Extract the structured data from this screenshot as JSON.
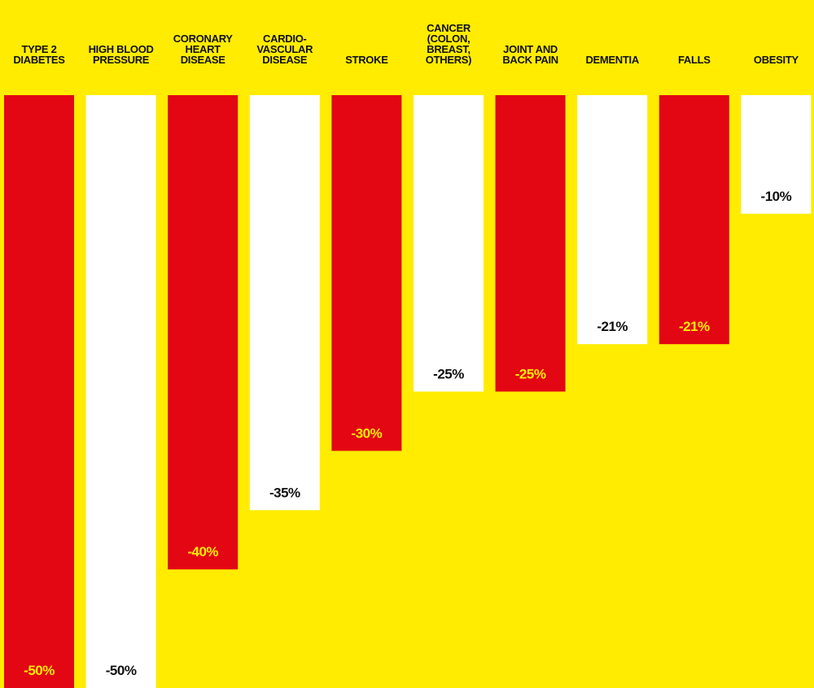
{
  "chart_data": {
    "type": "bar",
    "orientation": "downward",
    "categories": [
      [
        "TYPE 2",
        "DIABETES"
      ],
      [
        "HIGH BLOOD",
        "PRESSURE"
      ],
      [
        "CORONARY",
        "HEART",
        "DISEASE"
      ],
      [
        "CARDIO-",
        "VASCULAR",
        "DISEASE"
      ],
      [
        "STROKE"
      ],
      [
        "CANCER",
        "(COLON,",
        "BREAST,",
        "OTHERS)"
      ],
      [
        "JOINT AND",
        "BACK PAIN"
      ],
      [
        "DEMENTIA"
      ],
      [
        "FALLS"
      ],
      [
        "OBESITY"
      ]
    ],
    "values": [
      -50,
      -50,
      -40,
      -35,
      -30,
      -25,
      -25,
      -21,
      -21,
      -10
    ],
    "value_labels": [
      "-50%",
      "-50%",
      "-40%",
      "-35%",
      "-30%",
      "-25%",
      "-25%",
      "-21%",
      "-21%",
      "-10%"
    ],
    "bar_colors": [
      "#e30613",
      "#ffffff",
      "#e30613",
      "#ffffff",
      "#e30613",
      "#ffffff",
      "#e30613",
      "#ffffff",
      "#e30613",
      "#ffffff"
    ],
    "label_colors": [
      "#ffec00",
      "#111111",
      "#ffec00",
      "#111111",
      "#ffec00",
      "#111111",
      "#ffec00",
      "#111111",
      "#ffec00",
      "#111111"
    ],
    "ylim": [
      0,
      -50
    ],
    "grid": false,
    "title": "",
    "xlabel": "",
    "ylabel": ""
  },
  "colors": {
    "background": "#ffec00",
    "red": "#e30613",
    "white": "#ffffff",
    "text_dark": "#111111"
  }
}
